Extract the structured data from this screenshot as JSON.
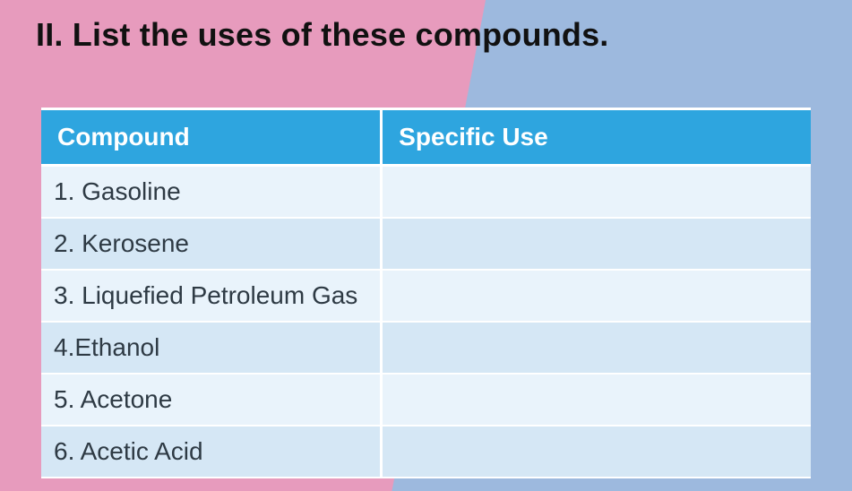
{
  "heading": "II. List the uses of these compounds.",
  "table": {
    "columns": [
      "Compound",
      "Specific Use"
    ],
    "rows": [
      [
        "1. Gasoline",
        ""
      ],
      [
        "2. Kerosene",
        ""
      ],
      [
        "3. Liquefied Petroleum Gas",
        ""
      ],
      [
        "4.Ethanol",
        ""
      ],
      [
        "5. Acetone",
        ""
      ],
      [
        "6. Acetic Acid",
        ""
      ]
    ],
    "header_bg": "#2ea5df",
    "header_fg": "#ffffff",
    "row_bg_odd": "#e9f3fb",
    "row_bg_even": "#d5e7f5",
    "cell_fg": "#2e3a44",
    "border_color": "#ffffff",
    "header_fontsize": 28,
    "cell_fontsize": 28,
    "col_widths_pct": [
      44.2,
      55.8
    ]
  },
  "background": {
    "left_color": "#e79bbd",
    "right_color": "#9db9de",
    "diagonal_top_pct": 57,
    "diagonal_bottom_pct": 46
  },
  "heading_style": {
    "color": "#111111",
    "fontsize": 36,
    "fontweight": 800
  }
}
